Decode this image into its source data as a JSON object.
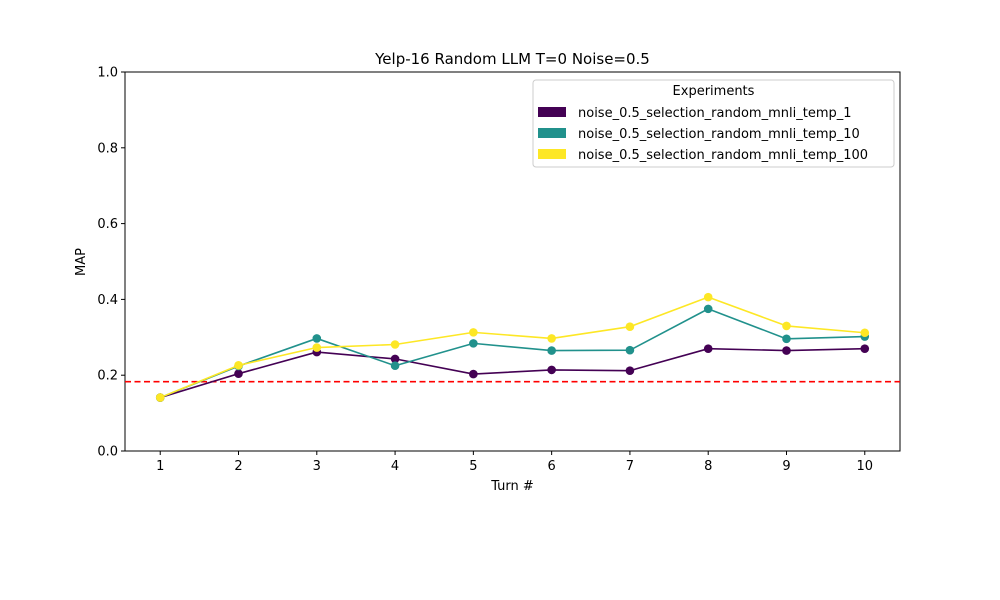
{
  "chart_data": {
    "type": "line",
    "title": "Yelp-16 Random LLM T=0 Noise=0.5",
    "xlabel": "Turn #",
    "ylabel": "MAP",
    "x": [
      1,
      2,
      3,
      4,
      5,
      6,
      7,
      8,
      9,
      10
    ],
    "xlim": [
      0.55,
      10.45
    ],
    "ylim": [
      0.0,
      1.0
    ],
    "yticks": [
      "0.0",
      "0.2",
      "0.4",
      "0.6",
      "0.8",
      "1.0"
    ],
    "xticks": [
      "1",
      "2",
      "3",
      "4",
      "5",
      "6",
      "7",
      "8",
      "9",
      "10"
    ],
    "grid": false,
    "legend": {
      "title": "Experiments",
      "placement": "upper right"
    },
    "series": [
      {
        "name": "noise_0.5_selection_random_mnli_temp_1",
        "color": "#440154",
        "values": [
          0.141,
          0.204,
          0.261,
          0.243,
          0.203,
          0.214,
          0.212,
          0.27,
          0.265,
          0.27
        ]
      },
      {
        "name": "noise_0.5_selection_random_mnli_temp_10",
        "color": "#21918c",
        "values": [
          0.141,
          0.224,
          0.297,
          0.225,
          0.284,
          0.265,
          0.266,
          0.375,
          0.296,
          0.302
        ]
      },
      {
        "name": "noise_0.5_selection_random_mnli_temp_100",
        "color": "#fde725",
        "values": [
          0.141,
          0.226,
          0.273,
          0.281,
          0.313,
          0.297,
          0.328,
          0.406,
          0.33,
          0.312
        ]
      }
    ],
    "reference_line": {
      "y": 0.183,
      "color": "#ff0000",
      "style": "dashed"
    }
  }
}
